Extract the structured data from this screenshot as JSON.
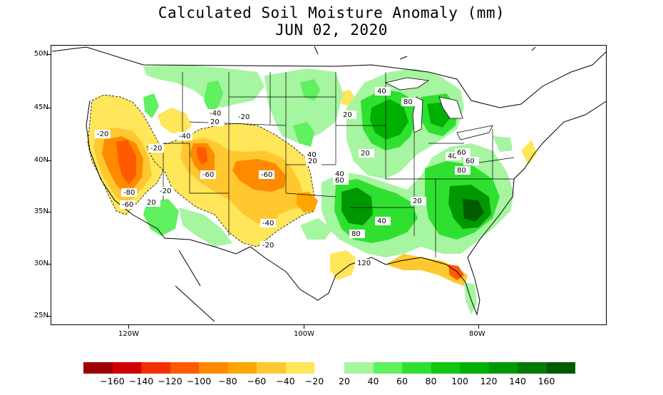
{
  "title": "Calculated Soil Moisture Anomaly (mm)",
  "subtitle": "JUN 02, 2020",
  "lat_labels": [
    "50N",
    "45N",
    "40N",
    "35N",
    "30N",
    "25N"
  ],
  "lon_labels": [
    "120W",
    "100W",
    "80W"
  ],
  "colorbar": {
    "labels": [
      "−160",
      "−140",
      "−120",
      "−100",
      "−80",
      "−60",
      "−40",
      "−20",
      "20",
      "40",
      "60",
      "80",
      "100",
      "120",
      "140",
      "160"
    ],
    "dry_colors": [
      "#9c0000",
      "#d00000",
      "#f03000",
      "#ff5a00",
      "#ff8a00",
      "#ffa500",
      "#ffc830",
      "#ffe65a"
    ],
    "wet_colors": [
      "#a6f5a0",
      "#60f060",
      "#30e030",
      "#10c810",
      "#00b000",
      "#009800",
      "#007a00",
      "#005a00"
    ]
  },
  "contour_labels": [
    "-20",
    "-20",
    "-40",
    "-20",
    "-40",
    "-60",
    "-60",
    "-80",
    "-60",
    "-20",
    "-40",
    "-20",
    "20",
    "40",
    "20",
    "40",
    "80",
    "20",
    "20",
    "40",
    "60",
    "80",
    "40",
    "20",
    "60",
    "80",
    "40",
    "60",
    "20",
    "120",
    "20"
  ]
}
